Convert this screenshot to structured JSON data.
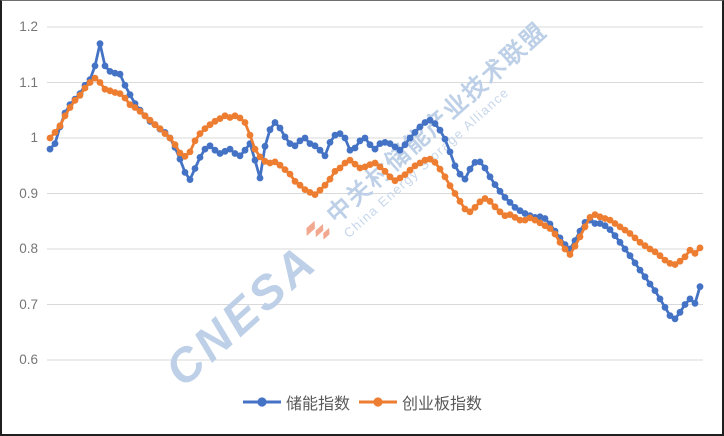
{
  "chart_data": {
    "type": "line",
    "title": "",
    "xlabel": "",
    "ylabel": "",
    "x_axis": "trading days (no x tick labels shown)",
    "ylim": [
      0.6,
      1.2
    ],
    "yticks": [
      1.2,
      1.1,
      1.0,
      0.9,
      0.8,
      0.7,
      0.6
    ],
    "ytick_labels": [
      "1.2",
      "1.1",
      "1",
      "0.9",
      "0.8",
      "0.7",
      "0.6"
    ],
    "grid": "horizontal",
    "grid_color": "#d9d9d9",
    "axis_label_color": "#767676",
    "legend_position": "bottom-center",
    "legend_text_color": "#595959",
    "series": [
      {
        "name": "储能指数",
        "id": "energy-storage-index",
        "color": "#4472C4",
        "marker": "circle",
        "values": [
          0.98,
          0.99,
          1.02,
          1.045,
          1.06,
          1.07,
          1.08,
          1.095,
          1.105,
          1.13,
          1.17,
          1.13,
          1.12,
          1.117,
          1.115,
          1.095,
          1.078,
          1.062,
          1.05,
          1.04,
          1.03,
          1.024,
          1.016,
          1.01,
          1.0,
          0.983,
          0.962,
          0.938,
          0.925,
          0.945,
          0.965,
          0.98,
          0.986,
          0.978,
          0.972,
          0.976,
          0.98,
          0.972,
          0.968,
          0.978,
          0.99,
          0.96,
          0.928,
          0.985,
          1.015,
          1.028,
          1.018,
          1.002,
          0.99,
          0.986,
          0.995,
          1.0,
          0.99,
          0.986,
          0.978,
          0.968,
          0.992,
          1.005,
          1.008,
          1.0,
          0.978,
          0.982,
          0.995,
          1.0,
          0.988,
          0.98,
          0.99,
          0.992,
          0.99,
          0.984,
          0.978,
          0.988,
          1.0,
          1.01,
          1.02,
          1.028,
          1.032,
          1.026,
          1.014,
          0.998,
          0.975,
          0.95,
          0.935,
          0.926,
          0.944,
          0.956,
          0.957,
          0.946,
          0.93,
          0.916,
          0.904,
          0.893,
          0.884,
          0.875,
          0.869,
          0.864,
          0.86,
          0.857,
          0.858,
          0.855,
          0.845,
          0.832,
          0.82,
          0.808,
          0.8,
          0.815,
          0.832,
          0.848,
          0.852,
          0.846,
          0.846,
          0.842,
          0.835,
          0.824,
          0.812,
          0.8,
          0.788,
          0.775,
          0.762,
          0.75,
          0.737,
          0.725,
          0.71,
          0.695,
          0.68,
          0.674,
          0.686,
          0.7,
          0.71,
          0.702,
          0.732
        ]
      },
      {
        "name": "创业板指数",
        "id": "chinext-index",
        "color": "#ED7D31",
        "marker": "circle",
        "values": [
          1.0,
          1.01,
          1.022,
          1.04,
          1.055,
          1.068,
          1.077,
          1.09,
          1.1,
          1.108,
          1.1,
          1.088,
          1.085,
          1.082,
          1.08,
          1.072,
          1.06,
          1.055,
          1.048,
          1.04,
          1.032,
          1.024,
          1.017,
          1.008,
          1.0,
          0.988,
          0.973,
          0.967,
          0.975,
          0.995,
          1.008,
          1.017,
          1.024,
          1.03,
          1.035,
          1.04,
          1.037,
          1.04,
          1.036,
          1.028,
          1.005,
          0.98,
          0.966,
          0.958,
          0.955,
          0.957,
          0.951,
          0.943,
          0.935,
          0.922,
          0.915,
          0.907,
          0.902,
          0.898,
          0.906,
          0.915,
          0.926,
          0.94,
          0.946,
          0.955,
          0.96,
          0.953,
          0.946,
          0.948,
          0.952,
          0.955,
          0.948,
          0.94,
          0.93,
          0.923,
          0.928,
          0.934,
          0.942,
          0.95,
          0.955,
          0.96,
          0.962,
          0.956,
          0.944,
          0.93,
          0.914,
          0.9,
          0.886,
          0.872,
          0.867,
          0.875,
          0.885,
          0.891,
          0.886,
          0.876,
          0.867,
          0.86,
          0.862,
          0.857,
          0.852,
          0.852,
          0.856,
          0.852,
          0.847,
          0.842,
          0.837,
          0.827,
          0.812,
          0.8,
          0.79,
          0.805,
          0.822,
          0.84,
          0.857,
          0.862,
          0.858,
          0.855,
          0.852,
          0.846,
          0.84,
          0.834,
          0.828,
          0.82,
          0.812,
          0.806,
          0.8,
          0.795,
          0.788,
          0.78,
          0.774,
          0.772,
          0.778,
          0.786,
          0.798,
          0.792,
          0.802
        ]
      }
    ]
  },
  "watermark": {
    "wordmark": "CNESA",
    "title_zh": "中关村储能产业技术联盟",
    "title_en": "China Energy Storage Alliance",
    "text_color": "#BDD0E7",
    "logo_color": "#F2A78F"
  }
}
